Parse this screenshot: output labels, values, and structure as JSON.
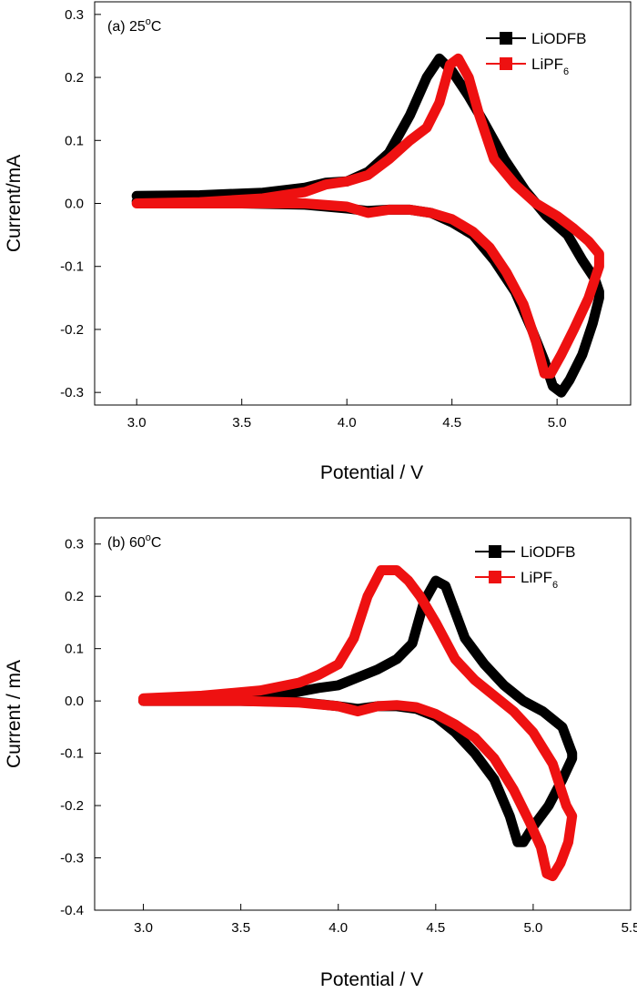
{
  "chart_data": [
    {
      "type": "line",
      "annotation": "(a) 25°C",
      "annotation_main": "(a) 25",
      "annotation_sup": "o",
      "annotation_unit": "C",
      "xlabel": "Potential / V",
      "ylabel": "Current/mA",
      "xlim": [
        2.8,
        5.35
      ],
      "ylim": [
        -0.32,
        0.32
      ],
      "xticks": [
        "3.0",
        "3.5",
        "4.0",
        "4.5",
        "5.0"
      ],
      "yticks": [
        "-0.3",
        "-0.2",
        "-0.1",
        "0.0",
        "0.1",
        "0.2",
        "0.3"
      ],
      "legend_position": "top-right",
      "series": [
        {
          "name": "LiODFB",
          "name_main": "LiODFB",
          "name_sub": "",
          "color": "#000000",
          "x": [
            3.0,
            3.3,
            3.6,
            3.8,
            3.9,
            4.0,
            4.1,
            4.2,
            4.3,
            4.38,
            4.44,
            4.5,
            4.58,
            4.65,
            4.75,
            4.85,
            4.95,
            5.05,
            5.12,
            5.18,
            5.2,
            5.2,
            5.17,
            5.12,
            5.06,
            5.02,
            4.98,
            4.94,
            4.88,
            4.8,
            4.7,
            4.6,
            4.5,
            4.4,
            4.3,
            4.2,
            4.1,
            4.0,
            3.8,
            3.5,
            3.0
          ],
          "y": [
            0.012,
            0.013,
            0.017,
            0.025,
            0.033,
            0.035,
            0.05,
            0.08,
            0.14,
            0.2,
            0.23,
            0.21,
            0.17,
            0.13,
            0.07,
            0.02,
            -0.02,
            -0.05,
            -0.09,
            -0.12,
            -0.14,
            -0.15,
            -0.19,
            -0.24,
            -0.28,
            -0.3,
            -0.29,
            -0.25,
            -0.2,
            -0.14,
            -0.09,
            -0.05,
            -0.03,
            -0.015,
            -0.01,
            -0.01,
            -0.012,
            -0.008,
            -0.002,
            0.0,
            0.003
          ]
        },
        {
          "name": "LiPF6",
          "name_main": "LiPF",
          "name_sub": "6",
          "color": "#ee1111",
          "x": [
            3.0,
            3.3,
            3.6,
            3.8,
            3.9,
            4.0,
            4.1,
            4.2,
            4.3,
            4.38,
            4.44,
            4.49,
            4.53,
            4.58,
            4.63,
            4.7,
            4.8,
            4.9,
            5.0,
            5.08,
            5.15,
            5.2,
            5.2,
            5.15,
            5.08,
            5.02,
            4.97,
            4.94,
            4.9,
            4.84,
            4.76,
            4.68,
            4.6,
            4.5,
            4.4,
            4.3,
            4.2,
            4.1,
            4.0,
            3.8,
            3.5,
            3.0
          ],
          "y": [
            0.0,
            0.002,
            0.008,
            0.018,
            0.03,
            0.035,
            0.045,
            0.07,
            0.1,
            0.12,
            0.16,
            0.22,
            0.23,
            0.2,
            0.14,
            0.07,
            0.03,
            0.0,
            -0.02,
            -0.04,
            -0.06,
            -0.08,
            -0.1,
            -0.15,
            -0.2,
            -0.24,
            -0.27,
            -0.27,
            -0.22,
            -0.16,
            -0.11,
            -0.07,
            -0.045,
            -0.025,
            -0.015,
            -0.01,
            -0.01,
            -0.015,
            -0.005,
            0.0,
            0.0,
            0.0
          ]
        }
      ]
    },
    {
      "type": "line",
      "annotation": "(b)  60°C",
      "annotation_main": "(b)   60",
      "annotation_sup": "o",
      "annotation_unit": "C",
      "xlabel": "Potential / V",
      "ylabel": "Current / mA",
      "xlim": [
        2.75,
        5.5
      ],
      "ylim": [
        -0.4,
        0.35
      ],
      "xticks": [
        "3.0",
        "3.5",
        "4.0",
        "4.5",
        "5.0",
        "5.5"
      ],
      "yticks": [
        "-0.4",
        "-0.3",
        "-0.2",
        "-0.1",
        "0.0",
        "0.1",
        "0.2",
        "0.3"
      ],
      "legend_position": "top-right",
      "series": [
        {
          "name": "LiODFB",
          "name_main": "LiODFB",
          "name_sub": "",
          "color": "#000000",
          "x": [
            3.0,
            3.3,
            3.6,
            3.8,
            3.9,
            4.0,
            4.1,
            4.2,
            4.3,
            4.38,
            4.44,
            4.5,
            4.55,
            4.6,
            4.65,
            4.75,
            4.85,
            4.95,
            5.05,
            5.15,
            5.2,
            5.2,
            5.15,
            5.08,
            5.0,
            4.95,
            4.92,
            4.88,
            4.8,
            4.7,
            4.6,
            4.5,
            4.4,
            4.3,
            4.2,
            4.1,
            4.0,
            3.8,
            3.5,
            3.0
          ],
          "y": [
            0.0,
            0.002,
            0.008,
            0.018,
            0.025,
            0.03,
            0.045,
            0.06,
            0.08,
            0.11,
            0.19,
            0.23,
            0.22,
            0.17,
            0.12,
            0.07,
            0.03,
            0.0,
            -0.02,
            -0.05,
            -0.1,
            -0.11,
            -0.15,
            -0.2,
            -0.24,
            -0.27,
            -0.27,
            -0.22,
            -0.15,
            -0.1,
            -0.06,
            -0.03,
            -0.015,
            -0.01,
            -0.01,
            -0.015,
            -0.01,
            -0.002,
            0.0,
            0.0
          ]
        },
        {
          "name": "LiPF6",
          "name_main": "LiPF",
          "name_sub": "6",
          "color": "#ee1111",
          "x": [
            3.0,
            3.3,
            3.6,
            3.8,
            3.9,
            4.0,
            4.08,
            4.15,
            4.22,
            4.3,
            4.36,
            4.42,
            4.5,
            4.6,
            4.7,
            4.8,
            4.9,
            5.0,
            5.1,
            5.17,
            5.2,
            5.18,
            5.14,
            5.1,
            5.07,
            5.04,
            4.98,
            4.9,
            4.8,
            4.7,
            4.6,
            4.5,
            4.4,
            4.3,
            4.2,
            4.1,
            4.0,
            3.8,
            3.5,
            3.0
          ],
          "y": [
            0.005,
            0.01,
            0.02,
            0.035,
            0.05,
            0.07,
            0.12,
            0.2,
            0.25,
            0.25,
            0.23,
            0.2,
            0.15,
            0.08,
            0.04,
            0.01,
            -0.02,
            -0.06,
            -0.12,
            -0.2,
            -0.22,
            -0.27,
            -0.31,
            -0.335,
            -0.33,
            -0.28,
            -0.23,
            -0.17,
            -0.11,
            -0.07,
            -0.045,
            -0.025,
            -0.012,
            -0.008,
            -0.01,
            -0.02,
            -0.01,
            -0.003,
            0.0,
            0.0
          ]
        }
      ]
    }
  ]
}
